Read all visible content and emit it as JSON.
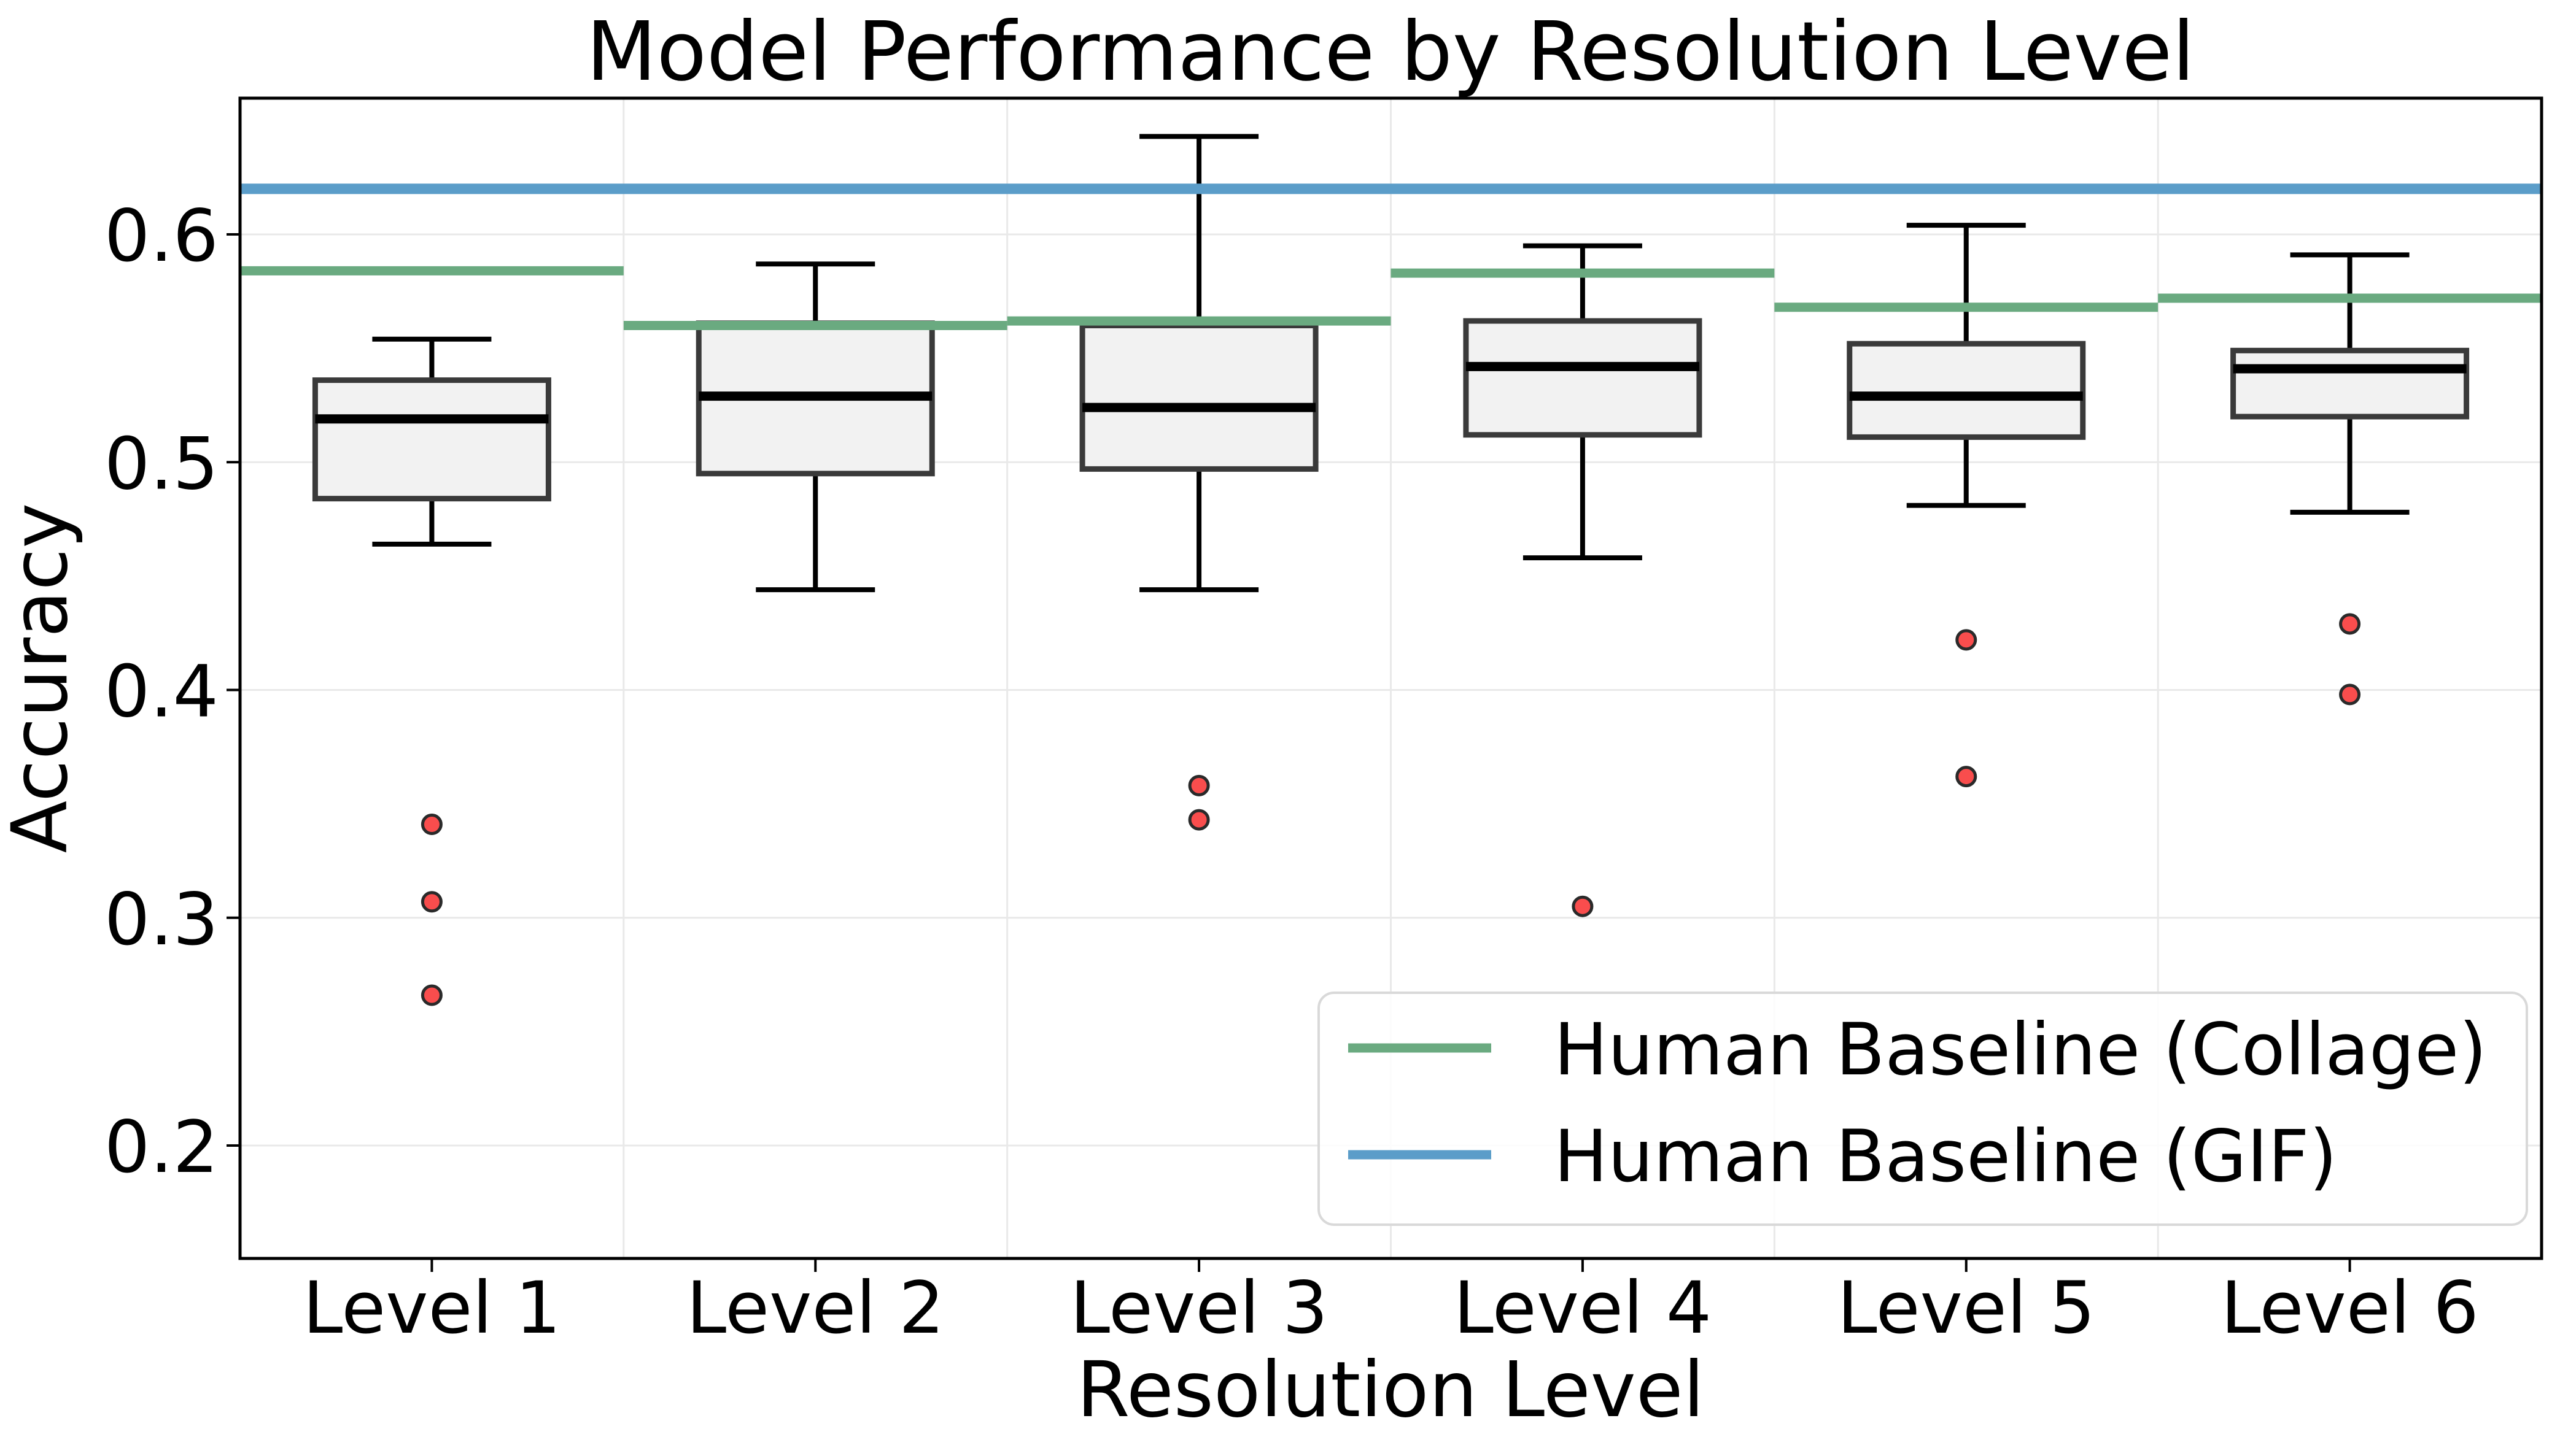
{
  "chart_data": {
    "type": "box",
    "title": "Model Performance by Resolution Level",
    "xlabel": "Resolution Level",
    "ylabel": "Accuracy",
    "ylim": [
      0.15,
      0.66
    ],
    "yticks": [
      0.2,
      0.3,
      0.4,
      0.5,
      0.6
    ],
    "ytick_labels": [
      "0.2",
      "0.3",
      "0.4",
      "0.5",
      "0.6"
    ],
    "grid": true,
    "legend_position": "lower right",
    "categories": [
      "Level 1",
      "Level 2",
      "Level 3",
      "Level 4",
      "Level 5",
      "Level 6"
    ],
    "boxes": [
      {
        "category": "Level 1",
        "whisker_low": 0.464,
        "q1": 0.484,
        "median": 0.519,
        "q3": 0.536,
        "whisker_high": 0.554,
        "outliers": [
          0.341,
          0.307,
          0.266
        ]
      },
      {
        "category": "Level 2",
        "whisker_low": 0.444,
        "q1": 0.495,
        "median": 0.529,
        "q3": 0.561,
        "whisker_high": 0.587,
        "outliers": []
      },
      {
        "category": "Level 3",
        "whisker_low": 0.444,
        "q1": 0.497,
        "median": 0.524,
        "q3": 0.56,
        "whisker_high": 0.643,
        "outliers": [
          0.358,
          0.343
        ]
      },
      {
        "category": "Level 4",
        "whisker_low": 0.458,
        "q1": 0.512,
        "median": 0.542,
        "q3": 0.562,
        "whisker_high": 0.595,
        "outliers": [
          0.305
        ]
      },
      {
        "category": "Level 5",
        "whisker_low": 0.481,
        "q1": 0.511,
        "median": 0.529,
        "q3": 0.552,
        "whisker_high": 0.604,
        "outliers": [
          0.422,
          0.362
        ]
      },
      {
        "category": "Level 6",
        "whisker_low": 0.478,
        "q1": 0.52,
        "median": 0.541,
        "q3": 0.549,
        "whisker_high": 0.591,
        "outliers": [
          0.429,
          0.398
        ]
      }
    ],
    "baselines": [
      {
        "id": "collage",
        "label": "Human Baseline (Collage)",
        "color": "#6aaa80",
        "style": "per-level-step",
        "values": [
          0.584,
          0.56,
          0.562,
          0.583,
          0.568,
          0.572
        ]
      },
      {
        "id": "gif",
        "label": "Human Baseline (GIF)",
        "color": "#5b9dc9",
        "style": "full-width",
        "value": 0.62
      }
    ],
    "colors": {
      "background": "#ffffff",
      "box_fill": "#f2f2f2",
      "box_edge": "#3a3a3a",
      "median": "#000000",
      "whisker": "#000000",
      "outlier_fill": "#f94d4d",
      "outlier_edge": "#2a2a2a",
      "grid": "#e9e9e9",
      "spine": "#000000",
      "text": "#000000",
      "legend_border": "#d9d9d9"
    }
  }
}
